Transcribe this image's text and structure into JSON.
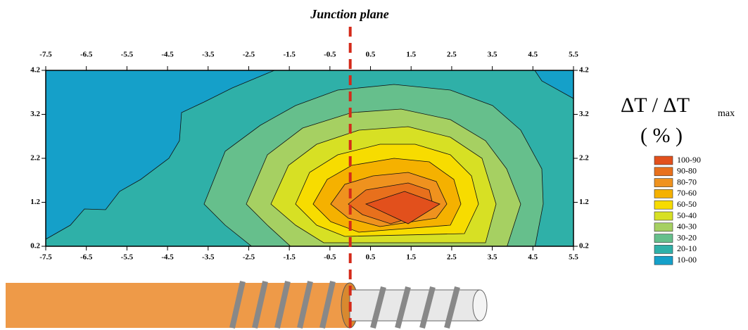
{
  "chart_data": {
    "type": "contour",
    "annotation": "Junction plane",
    "junction_x": 0,
    "xlim": [
      -7.5,
      5.5
    ],
    "xticks": [
      -7.5,
      -6.5,
      -5.5,
      -4.5,
      -3.5,
      -2.5,
      -1.5,
      -0.5,
      0.5,
      1.5,
      2.5,
      3.5,
      4.5,
      5.5
    ],
    "ylim": [
      0.2,
      4.2
    ],
    "yticks": [
      0.2,
      1.2,
      2.2,
      3.2,
      4.2
    ],
    "legend_title": "ΔT / ΔT",
    "legend_subscript": "max",
    "legend_unit": "( % )",
    "legend": [
      {
        "name": "100-90",
        "color": "#e2501c"
      },
      {
        "name": "90-80",
        "color": "#e8701c"
      },
      {
        "name": "80-70",
        "color": "#ef921e"
      },
      {
        "name": "70-60",
        "color": "#f5b100"
      },
      {
        "name": "60-50",
        "color": "#f7dc00"
      },
      {
        "name": "50-40",
        "color": "#d7e024"
      },
      {
        "name": "40-30",
        "color": "#a6d062"
      },
      {
        "name": "30-20",
        "color": "#66bf8c"
      },
      {
        "name": "20-10",
        "color": "#2fb0a8"
      },
      {
        "name": "10-00",
        "color": "#15a0c9"
      }
    ]
  }
}
